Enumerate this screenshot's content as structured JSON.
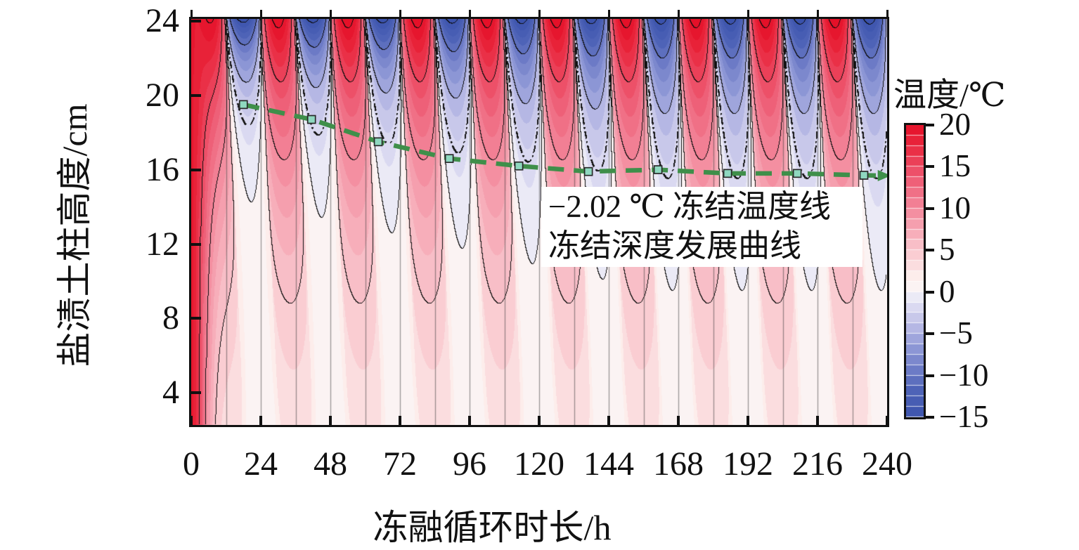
{
  "chart_data": {
    "type": "heatmap",
    "title": "",
    "xlabel": "冻融循环时长/h",
    "ylabel": "盐渍土柱高度/cm",
    "xlim": [
      0,
      240
    ],
    "ylim": [
      2.28,
      24.1
    ],
    "x_ticks": [
      0,
      24,
      48,
      72,
      96,
      120,
      144,
      168,
      192,
      216,
      240
    ],
    "y_ticks": [
      4,
      8,
      12,
      16,
      20,
      24
    ],
    "cycle_period_h": 24,
    "grid_vertical_every_h": 12,
    "contour_interval_c": 5,
    "freezing_temperature_c": -2.02,
    "annotation": {
      "line1": "−2.02 ℃ 冻结温度线",
      "line2": "冻结深度发展曲线"
    },
    "colorbar": {
      "title": "温度/℃",
      "range": [
        -15,
        20
      ],
      "ticks": [
        20,
        15,
        10,
        5,
        0,
        -5,
        -10,
        -15
      ],
      "band_step_c": 1.25,
      "stops": [
        [
          -15.5,
          "#3a52ac"
        ],
        [
          -12,
          "#4d62b6"
        ],
        [
          -9,
          "#707ec8"
        ],
        [
          -6,
          "#98a0da"
        ],
        [
          -4,
          "#bcbce6"
        ],
        [
          -2,
          "#d8d7f0"
        ],
        [
          -0.7,
          "#eae9f6"
        ],
        [
          0,
          "#f7f5fa"
        ],
        [
          0.7,
          "#fbf3f2"
        ],
        [
          2,
          "#fdecea"
        ],
        [
          4,
          "#fad2d6"
        ],
        [
          6,
          "#f8b9c3"
        ],
        [
          9,
          "#f494a5"
        ],
        [
          12,
          "#f06e85"
        ],
        [
          15,
          "#ec4861"
        ],
        [
          17.5,
          "#e9283e"
        ],
        [
          20,
          "#e51028"
        ]
      ]
    },
    "series": [
      {
        "name": "−2.02 ℃ 冻结温度线",
        "style": "black dash-dot contour at -2.02 °C",
        "color": "#1a1a1a"
      },
      {
        "name": "冻结深度发展曲线",
        "style": "green dashed line with square markers and right arrow",
        "color": "#3f8f4a",
        "marker_color": "#8fd8c0",
        "marker_edge": "#2a2a2a",
        "x_h": [
          18,
          41.5,
          64.5,
          89,
          113,
          137,
          161,
          185,
          209,
          232
        ],
        "y_cm": [
          19.5,
          18.7,
          17.5,
          16.6,
          16.2,
          15.9,
          16.0,
          15.8,
          15.8,
          15.7
        ],
        "arrow_end": [
          237.5,
          15.68
        ]
      }
    ],
    "field_model": {
      "warm_base": 1.0,
      "warm_amp": 20,
      "warm_decay_cm": 9.5,
      "cold_base": 0.8,
      "cold_amp": 16.8,
      "cold_decay0_cm": 3.0,
      "cold_decay_growth_cm": 1.8,
      "cold_growth_time_h": 160,
      "warm_center_h": 6,
      "lag_h_per_cm": 0.28,
      "sharpness": 0.38,
      "init_temp_c": 19,
      "init_decay_h": 6,
      "grid_line_color": "rgba(60,60,60,0.5)"
    }
  }
}
